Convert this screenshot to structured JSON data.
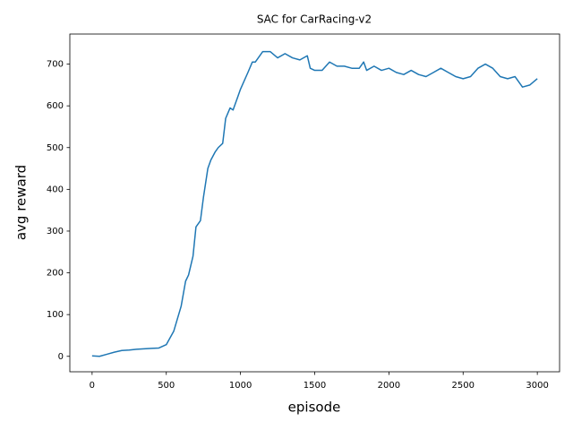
{
  "chart_data": {
    "type": "line",
    "title": "SAC for CarRacing-v2",
    "xlabel": "episode",
    "ylabel": "avg reward",
    "x": [
      0,
      50,
      100,
      150,
      200,
      250,
      300,
      350,
      400,
      450,
      500,
      550,
      600,
      630,
      650,
      680,
      700,
      730,
      750,
      780,
      800,
      830,
      850,
      880,
      900,
      930,
      950,
      980,
      1000,
      1050,
      1080,
      1100,
      1150,
      1200,
      1250,
      1300,
      1350,
      1400,
      1450,
      1470,
      1500,
      1550,
      1600,
      1650,
      1700,
      1750,
      1800,
      1830,
      1850,
      1900,
      1950,
      2000,
      2050,
      2100,
      2150,
      2200,
      2250,
      2300,
      2350,
      2400,
      2450,
      2500,
      2550,
      2600,
      2650,
      2700,
      2750,
      2800,
      2850,
      2900,
      2950,
      3000
    ],
    "series": [
      {
        "name": "avg reward",
        "color": "#1f77b4",
        "values": [
          1,
          0,
          5,
          10,
          14,
          15,
          17,
          18,
          19,
          20,
          28,
          60,
          120,
          180,
          195,
          240,
          310,
          325,
          380,
          450,
          470,
          490,
          500,
          510,
          570,
          595,
          590,
          620,
          640,
          680,
          705,
          705,
          730,
          730,
          715,
          725,
          715,
          710,
          720,
          690,
          685,
          685,
          705,
          695,
          695,
          690,
          690,
          705,
          685,
          695,
          685,
          690,
          680,
          675,
          685,
          675,
          670,
          680,
          690,
          680,
          670,
          665,
          670,
          690,
          700,
          690,
          670,
          665,
          670,
          645,
          650,
          665
        ]
      }
    ],
    "xlim": [
      -150,
      3150
    ],
    "ylim": [
      -37,
      772
    ],
    "xticks": [
      0,
      500,
      1000,
      1500,
      2000,
      2500,
      3000
    ],
    "yticks": [
      0,
      100,
      200,
      300,
      400,
      500,
      600,
      700
    ],
    "grid": false
  }
}
